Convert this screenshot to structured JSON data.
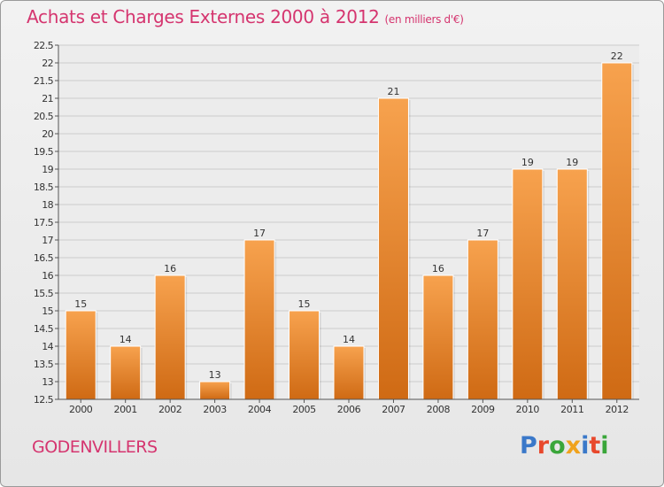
{
  "header": {
    "title": "Achats et Charges Externes 2000 à 2012",
    "unit": "(en milliers d'€)"
  },
  "footer": {
    "place": "GODENVILLERS",
    "brand": "Proxiti",
    "brand_colors": [
      "#3a78c9",
      "#e8482c",
      "#3aa63a",
      "#f0a21c",
      "#3a78c9",
      "#e8482c",
      "#3aa63a"
    ]
  },
  "colors": {
    "bar_light": "#f7a24e",
    "bar_dark": "#cf6a14",
    "title": "#d5356f",
    "grid": "#cccccc"
  },
  "chart_data": {
    "type": "bar",
    "categories": [
      "2000",
      "2001",
      "2002",
      "2003",
      "2004",
      "2005",
      "2006",
      "2007",
      "2008",
      "2009",
      "2010",
      "2011",
      "2012"
    ],
    "values": [
      15,
      14,
      16,
      13,
      17,
      15,
      14,
      21,
      16,
      17,
      19,
      19,
      22
    ],
    "ylim": [
      12.5,
      22.5
    ],
    "yticks": [
      "12.5",
      "13",
      "13.5",
      "14",
      "14.5",
      "15",
      "15.5",
      "16",
      "16.5",
      "17",
      "17.5",
      "18",
      "18.5",
      "19",
      "19.5",
      "20",
      "20.5",
      "21",
      "21.5",
      "22",
      "22.5"
    ],
    "grid": true,
    "data_labels": true
  }
}
